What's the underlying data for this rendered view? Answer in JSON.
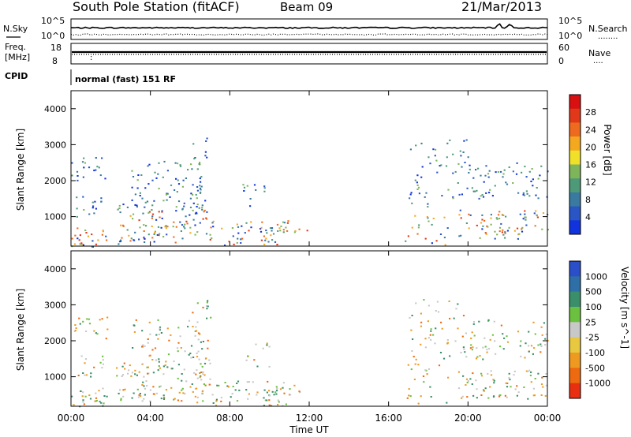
{
  "header": {
    "station": "South Pole Station (fitACF)",
    "beam": "Beam 09",
    "date": "21/Mar/2013"
  },
  "noise_panel": {
    "left_label": "N.Sky",
    "left_ticks": [
      "10^5",
      "10^0"
    ],
    "right_ticks": [
      "10^5",
      "10^0"
    ],
    "right_label": "N.Search",
    "right_line": "........"
  },
  "freq_panel": {
    "left_label_1": "Freq.",
    "left_label_2": "[MHz]",
    "left_ticks": [
      "18",
      "8"
    ],
    "right_ticks": [
      "60",
      "0"
    ],
    "right_label": "Nave",
    "right_line": "....",
    "cpid_label": "CPID",
    "cpid_text": "normal (fast) 151 RF"
  },
  "chart_data": [
    {
      "type": "heatmap",
      "ylabel": "Slant Range [km]",
      "ylim": [
        180,
        4500
      ],
      "yticks": [
        "1000",
        "2000",
        "3000",
        "4000"
      ],
      "xlim": [
        "00:00",
        "24:00"
      ],
      "colorbar": {
        "label": "Power [dB]",
        "ticks": [
          "4",
          "8",
          "12",
          "16",
          "20",
          "24",
          "28"
        ],
        "colors": [
          "#1133dd",
          "#2a55c4",
          "#3a7aa0",
          "#4e9a78",
          "#7fb55a",
          "#f0e02a",
          "#f4a820",
          "#ee6a1e",
          "#e03818",
          "#d81010"
        ]
      }
    },
    {
      "type": "heatmap",
      "ylabel": "Velocity [m s^-1]",
      "ylabel_axis": "Slant Range [km]",
      "ylim": [
        180,
        4500
      ],
      "yticks": [
        "1000",
        "2000",
        "3000",
        "4000"
      ],
      "xlim": [
        "00:00",
        "24:00"
      ],
      "colorbar": {
        "label": "Velocity [m s^-1]",
        "ticks": [
          "1000",
          "500",
          "100",
          "25",
          "-25",
          "-100",
          "-500",
          "-1000"
        ],
        "colors": [
          "#2a4fc8",
          "#2e6fa8",
          "#3a8f6a",
          "#6cc040",
          "#c8c8c8",
          "#e8c840",
          "#ee9a20",
          "#ee6a10",
          "#e83010"
        ]
      }
    }
  ],
  "xaxis": {
    "ticks": [
      "00:00",
      "04:00",
      "08:00",
      "12:00",
      "16:00",
      "20:00",
      "00:00"
    ],
    "label": "Time UT"
  }
}
